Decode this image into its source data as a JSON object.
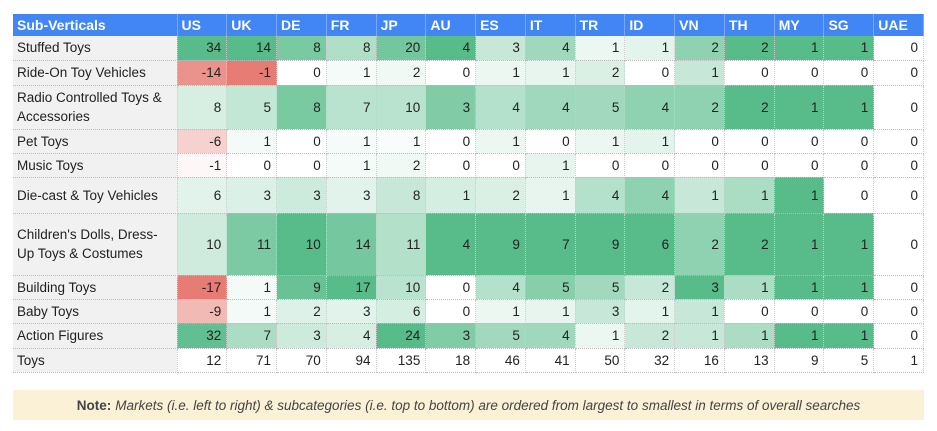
{
  "chart_data": {
    "type": "heatmap",
    "corner_header": "Sub-Verticals",
    "columns": [
      "US",
      "UK",
      "DE",
      "FR",
      "JP",
      "AU",
      "ES",
      "IT",
      "TR",
      "ID",
      "VN",
      "TH",
      "MY",
      "SG",
      "UAE"
    ],
    "rows": [
      {
        "label": "Stuffed Toys",
        "values": [
          34,
          14,
          8,
          8,
          20,
          4,
          3,
          4,
          1,
          1,
          2,
          2,
          1,
          1,
          0
        ]
      },
      {
        "label": "Ride-On Toy Vehicles",
        "values": [
          -14,
          -1,
          0,
          1,
          2,
          0,
          1,
          1,
          2,
          0,
          1,
          0,
          0,
          0,
          0
        ]
      },
      {
        "label": "Radio Controlled Toys & Accessories",
        "values": [
          8,
          5,
          8,
          7,
          10,
          3,
          4,
          4,
          5,
          4,
          2,
          2,
          1,
          1,
          0
        ]
      },
      {
        "label": "Pet Toys",
        "values": [
          -6,
          1,
          0,
          1,
          1,
          0,
          1,
          0,
          1,
          1,
          0,
          0,
          0,
          0,
          0
        ]
      },
      {
        "label": "Music Toys",
        "values": [
          -1,
          0,
          0,
          1,
          2,
          0,
          0,
          1,
          0,
          0,
          0,
          0,
          0,
          0,
          0
        ]
      },
      {
        "label": "Die-cast & Toy Vehicles",
        "values": [
          6,
          3,
          3,
          3,
          8,
          1,
          2,
          1,
          4,
          4,
          1,
          1,
          1,
          0,
          0
        ]
      },
      {
        "label": "Children's Dolls, Dress-Up Toys & Costumes",
        "values": [
          10,
          11,
          10,
          14,
          11,
          4,
          9,
          7,
          9,
          6,
          2,
          2,
          1,
          1,
          0
        ]
      },
      {
        "label": "Building Toys",
        "values": [
          -17,
          1,
          9,
          17,
          10,
          0,
          4,
          5,
          5,
          2,
          3,
          1,
          1,
          1,
          0
        ]
      },
      {
        "label": "Baby Toys",
        "values": [
          -9,
          1,
          2,
          3,
          6,
          0,
          1,
          1,
          3,
          1,
          1,
          0,
          0,
          0,
          0
        ]
      },
      {
        "label": "Action Figures",
        "values": [
          32,
          7,
          3,
          4,
          24,
          3,
          5,
          4,
          1,
          2,
          1,
          1,
          1,
          1,
          0
        ]
      }
    ],
    "totals": {
      "label": "Toys",
      "values": [
        12,
        71,
        70,
        94,
        135,
        18,
        46,
        41,
        50,
        32,
        16,
        13,
        9,
        5,
        1
      ]
    },
    "colors": {
      "positive": "#57bb8a",
      "negative": "#e67c73",
      "neutral": "#ffffff"
    }
  },
  "note": {
    "bold": "Note:",
    "text": "Markets (i.e. left to right) & subcategories (i.e. top to bottom) are ordered from largest to smallest in terms of overall searches"
  }
}
